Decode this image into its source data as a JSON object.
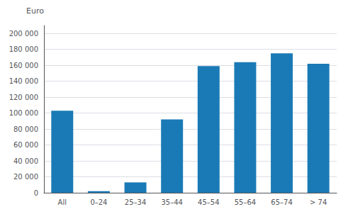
{
  "chart_data": {
    "type": "bar",
    "ylabel": "Euro",
    "categories": [
      "All",
      "0–24",
      "25–34",
      "35–44",
      "45–54",
      "55–64",
      "65–74",
      "> 74"
    ],
    "values": [
      103000,
      2000,
      13000,
      92000,
      159000,
      164000,
      175000,
      162000
    ],
    "color": "#1a7ab5",
    "ylim": [
      0,
      210000
    ],
    "yticks": [
      0,
      {
        "value": 20000,
        "label": "20 000"
      },
      {
        "value": 40000,
        "label": "40 000"
      },
      {
        "value": 60000,
        "label": "60 000"
      },
      {
        "value": 80000,
        "label": "80 000"
      },
      {
        "value": 100000,
        "label": "100 000"
      },
      {
        "value": 120000,
        "label": "120 000"
      },
      {
        "value": 140000,
        "label": "140 000"
      },
      {
        "value": 160000,
        "label": "160 000"
      },
      {
        "value": 180000,
        "label": "180 000"
      },
      {
        "value": 200000,
        "label": "200 000"
      }
    ],
    "grid": true
  }
}
